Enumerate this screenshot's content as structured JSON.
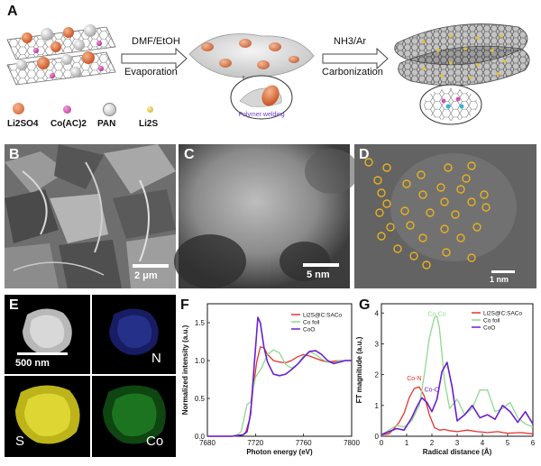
{
  "panels": {
    "A": {
      "label": "A",
      "step1_top": "DMF/EtOH",
      "step1_bottom": "Evaporation",
      "step2_top": "NH3/Ar",
      "step2_bottom": "Carbonization",
      "inset_label": "Polymer welding",
      "legend": [
        {
          "name": "Li2SO4",
          "color": "#e07a4a"
        },
        {
          "name": "Co(AC)2",
          "color": "#d44fb0"
        },
        {
          "name": "PAN",
          "color": "#d8d8d8"
        },
        {
          "name": "Li2S",
          "color": "#e6c233"
        }
      ]
    },
    "B": {
      "label": "B",
      "scale": "2 μm"
    },
    "C": {
      "label": "C",
      "scale": "5 nm"
    },
    "D": {
      "label": "D",
      "scale": "1 nm"
    },
    "E": {
      "label": "E",
      "scale": "500 nm",
      "maps": [
        "N",
        "S",
        "Co"
      ]
    },
    "F": {
      "label": "F"
    },
    "G": {
      "label": "G"
    }
  },
  "chart_data": [
    {
      "type": "line",
      "panel": "F",
      "xlabel": "Photon energy (eV)",
      "ylabel": "Normalized intensity (a.u.)",
      "xlim": [
        7680,
        7800
      ],
      "ylim": [
        0,
        1.75
      ],
      "xticks": [
        7680,
        7720,
        7760,
        7800
      ],
      "yticks": [
        0.0,
        0.5,
        1.0,
        1.5
      ],
      "legend_position": "top-right",
      "series": [
        {
          "name": "Li2S@C:SACo",
          "color": "#e8322e",
          "x": [
            7680,
            7700,
            7710,
            7712,
            7715,
            7718,
            7721,
            7724,
            7727,
            7730,
            7735,
            7740,
            7745,
            7750,
            7755,
            7760,
            7765,
            7770,
            7775,
            7780,
            7785,
            7790,
            7795,
            7800
          ],
          "y": [
            0.0,
            0.0,
            0.02,
            0.06,
            0.22,
            0.62,
            0.98,
            1.18,
            1.17,
            1.08,
            1.0,
            0.98,
            0.97,
            1.0,
            1.05,
            1.08,
            1.06,
            1.03,
            1.0,
            0.98,
            0.99,
            1.0,
            1.0,
            1.0
          ]
        },
        {
          "name": "Co foil",
          "color": "#8fd88f",
          "x": [
            7680,
            7700,
            7705,
            7708,
            7710,
            7713,
            7716,
            7720,
            7725,
            7730,
            7735,
            7740,
            7745,
            7750,
            7755,
            7760,
            7765,
            7770,
            7775,
            7780,
            7785,
            7790,
            7795,
            7800
          ],
          "y": [
            0.0,
            0.0,
            0.02,
            0.06,
            0.2,
            0.42,
            0.45,
            0.78,
            0.9,
            1.08,
            1.14,
            1.1,
            0.95,
            0.9,
            0.95,
            1.06,
            1.12,
            1.08,
            1.02,
            0.98,
            0.97,
            1.0,
            1.0,
            1.0
          ]
        },
        {
          "name": "CoO",
          "color": "#6a1fd0",
          "x": [
            7680,
            7700,
            7710,
            7713,
            7716,
            7719,
            7722,
            7724,
            7727,
            7730,
            7735,
            7740,
            7745,
            7750,
            7755,
            7760,
            7765,
            7770,
            7775,
            7780,
            7785,
            7790,
            7795,
            7800
          ],
          "y": [
            0.0,
            0.0,
            0.02,
            0.06,
            0.3,
            0.95,
            1.57,
            1.5,
            1.18,
            0.98,
            0.82,
            0.8,
            0.82,
            0.88,
            0.95,
            1.04,
            1.12,
            1.13,
            1.08,
            1.0,
            0.96,
            0.98,
            1.0,
            1.0
          ]
        }
      ]
    },
    {
      "type": "line",
      "panel": "G",
      "xlabel": "Radical distance (Å)",
      "ylabel": "FT magnitude (a.u.)",
      "xlim": [
        0,
        6
      ],
      "ylim": [
        0,
        4.3
      ],
      "xticks": [
        0,
        1,
        2,
        3,
        4,
        5,
        6
      ],
      "yticks": [
        0,
        1,
        2,
        3,
        4
      ],
      "legend_position": "top-left",
      "annotations": [
        {
          "text": "Co-Co",
          "x": 2.2,
          "y": 3.9,
          "color": "#8fd88f"
        },
        {
          "text": "Co-N",
          "x": 1.3,
          "y": 1.82,
          "color": "#e8322e"
        },
        {
          "text": "Co-O",
          "x": 2.0,
          "y": 1.45,
          "color": "#6a1fd0"
        }
      ],
      "series": [
        {
          "name": "Li2S@C:SACo",
          "color": "#e8322e",
          "x": [
            0,
            0.3,
            0.5,
            0.7,
            0.9,
            1.1,
            1.3,
            1.5,
            1.7,
            1.9,
            2.1,
            2.3,
            2.5,
            2.7,
            3.0,
            3.4,
            3.8,
            4.2,
            4.6,
            5.0,
            5.5,
            6.0
          ],
          "y": [
            0.05,
            0.08,
            0.25,
            0.45,
            0.75,
            1.25,
            1.55,
            1.6,
            1.3,
            0.7,
            0.28,
            0.2,
            0.22,
            0.18,
            0.15,
            0.2,
            0.15,
            0.12,
            0.15,
            0.1,
            0.12,
            0.08
          ]
        },
        {
          "name": "Co foil",
          "color": "#8fd88f",
          "x": [
            0,
            0.3,
            0.6,
            0.9,
            1.2,
            1.5,
            1.7,
            1.9,
            2.1,
            2.2,
            2.3,
            2.5,
            2.7,
            3.0,
            3.3,
            3.6,
            3.9,
            4.2,
            4.5,
            4.8,
            5.1,
            5.4,
            5.7,
            6.0
          ],
          "y": [
            0.05,
            0.2,
            0.35,
            0.3,
            0.5,
            1.0,
            2.0,
            3.2,
            3.85,
            3.9,
            3.5,
            1.8,
            0.9,
            1.2,
            0.7,
            0.9,
            1.5,
            1.5,
            0.8,
            0.9,
            1.1,
            0.6,
            0.4,
            0.3
          ]
        },
        {
          "name": "CoO",
          "color": "#6a1fd0",
          "x": [
            0,
            0.3,
            0.6,
            0.9,
            1.2,
            1.4,
            1.6,
            1.8,
            2.0,
            2.2,
            2.4,
            2.6,
            2.8,
            3.0,
            3.3,
            3.6,
            3.9,
            4.2,
            4.5,
            4.8,
            5.1,
            5.4,
            5.7,
            6.0
          ],
          "y": [
            0.05,
            0.15,
            0.25,
            0.2,
            0.6,
            0.95,
            1.25,
            1.1,
            0.8,
            1.2,
            2.1,
            2.4,
            1.6,
            0.5,
            0.7,
            1.0,
            0.6,
            0.7,
            0.55,
            1.0,
            0.8,
            0.45,
            0.8,
            0.4
          ]
        }
      ]
    }
  ]
}
